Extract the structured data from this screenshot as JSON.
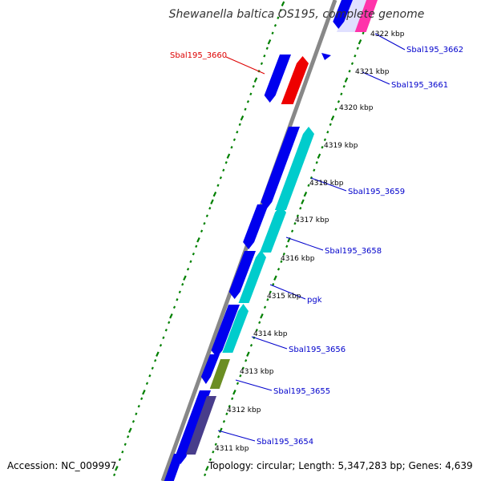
{
  "title": "Shewanella baltica OS195, complete genome",
  "accession": "Accession: NC_009997",
  "topology": "Topology: circular; Length: 5,347,283 bp; Genes: 4,639",
  "colors": {
    "backbone": "#888888",
    "tick": "#008000",
    "forward": "#0000ee",
    "cyan": "#00cccc",
    "pink": "#ff33aa",
    "red": "#ee0000",
    "olive": "#6b8e23",
    "slate": "#483d8b",
    "highlight": "#e0e0ff",
    "labelDefault": "#0000cc",
    "labelHighlight": "#dd0000"
  },
  "kbp_labels": [
    "4311 kbp",
    "4312 kbp",
    "4313 kbp",
    "4314 kbp",
    "4315 kbp",
    "4316 kbp",
    "4317 kbp",
    "4318 kbp",
    "4319 kbp",
    "4320 kbp",
    "4321 kbp",
    "4322 kbp"
  ],
  "gene_labels": [
    {
      "text": "Sbal195_3660",
      "highlight": true
    },
    {
      "text": "Sbal195_3662",
      "highlight": false
    },
    {
      "text": "Sbal195_3661",
      "highlight": false
    },
    {
      "text": "Sbal195_3659",
      "highlight": false
    },
    {
      "text": "Sbal195_3658",
      "highlight": false
    },
    {
      "text": "pgk",
      "highlight": false
    },
    {
      "text": "Sbal195_3656",
      "highlight": false
    },
    {
      "text": "Sbal195_3655",
      "highlight": false
    },
    {
      "text": "Sbal195_3654",
      "highlight": false
    }
  ]
}
